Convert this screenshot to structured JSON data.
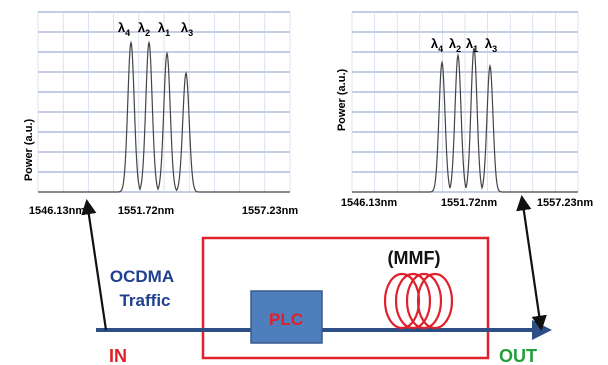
{
  "plots": [
    {
      "ylabel": "Power  (a.u.)",
      "ticks": [
        "1546.13nm",
        "1551.72nm",
        "1557.23nm"
      ],
      "peaks": [
        {
          "letter": "λ",
          "sub": "4",
          "rel_height": 0.83
        },
        {
          "letter": "λ",
          "sub": "2",
          "rel_height": 0.83
        },
        {
          "letter": "λ",
          "sub": "1",
          "rel_height": 0.77
        },
        {
          "letter": "λ",
          "sub": "3",
          "rel_height": 0.66
        }
      ]
    },
    {
      "ylabel": "Power  (a.u.)",
      "ticks": [
        "1546.13nm",
        "1551.72nm",
        "1557.23nm"
      ],
      "peaks": [
        {
          "letter": "λ",
          "sub": "4",
          "rel_height": 0.72
        },
        {
          "letter": "λ",
          "sub": "2",
          "rel_height": 0.76
        },
        {
          "letter": "λ",
          "sub": "1",
          "rel_height": 0.8
        },
        {
          "letter": "λ",
          "sub": "3",
          "rel_height": 0.7
        }
      ]
    }
  ],
  "diagram": {
    "traffic_line1": "OCDMA",
    "traffic_line2": "Traffic",
    "plc": "PLC",
    "mmf": "(MMF)",
    "in": "IN",
    "out": "OUT"
  },
  "colors": {
    "grid": "#8a9ad0",
    "trace": "#444444",
    "fiber_line": "#2e4f86",
    "box": "#e0202a",
    "plc_fill": "#4f7ebc",
    "plc_text": "#e0202a",
    "traffic": "#1f3f8f",
    "in": "#e0202a",
    "out": "#22a03a",
    "coil": "#e0202a"
  }
}
